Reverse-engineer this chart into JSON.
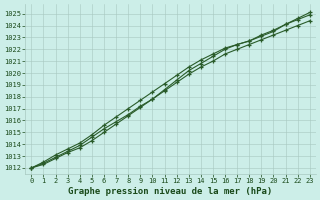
{
  "xlabel": "Graphe pression niveau de la mer (hPa)",
  "ylim": [
    1011.5,
    1025.8
  ],
  "xlim": [
    -0.5,
    23.5
  ],
  "yticks": [
    1012,
    1013,
    1014,
    1015,
    1016,
    1017,
    1018,
    1019,
    1020,
    1021,
    1022,
    1023,
    1024,
    1025
  ],
  "xticks": [
    0,
    1,
    2,
    3,
    4,
    5,
    6,
    7,
    8,
    9,
    10,
    11,
    12,
    13,
    14,
    15,
    16,
    17,
    18,
    19,
    20,
    21,
    22,
    23
  ],
  "background_color": "#cceee8",
  "grid_color": "#a8c8c0",
  "line_color": "#2a5c2a",
  "line1": [
    1012.0,
    1012.4,
    1012.9,
    1013.4,
    1013.9,
    1014.6,
    1015.3,
    1015.9,
    1016.5,
    1017.2,
    1017.8,
    1018.5,
    1019.2,
    1019.9,
    1020.5,
    1021.0,
    1021.6,
    1022.0,
    1022.4,
    1022.8,
    1023.2,
    1023.6,
    1024.0,
    1024.4
  ],
  "line2": [
    1012.0,
    1012.3,
    1012.8,
    1013.3,
    1013.7,
    1014.3,
    1015.0,
    1015.7,
    1016.4,
    1017.1,
    1017.8,
    1018.6,
    1019.4,
    1020.2,
    1020.8,
    1021.4,
    1022.0,
    1022.4,
    1022.7,
    1023.1,
    1023.5,
    1024.1,
    1024.6,
    1025.1
  ],
  "line3": [
    1012.0,
    1012.5,
    1013.1,
    1013.6,
    1014.1,
    1014.8,
    1015.6,
    1016.3,
    1017.0,
    1017.7,
    1018.4,
    1019.1,
    1019.8,
    1020.5,
    1021.1,
    1021.6,
    1022.1,
    1022.4,
    1022.7,
    1023.2,
    1023.6,
    1024.1,
    1024.5,
    1024.9
  ],
  "linewidth": 0.8,
  "markersize": 3.5,
  "xlabel_fontsize": 6.5,
  "tick_fontsize": 5,
  "tick_color": "#1a4a1a",
  "xlabel_color": "#1a4a1a"
}
